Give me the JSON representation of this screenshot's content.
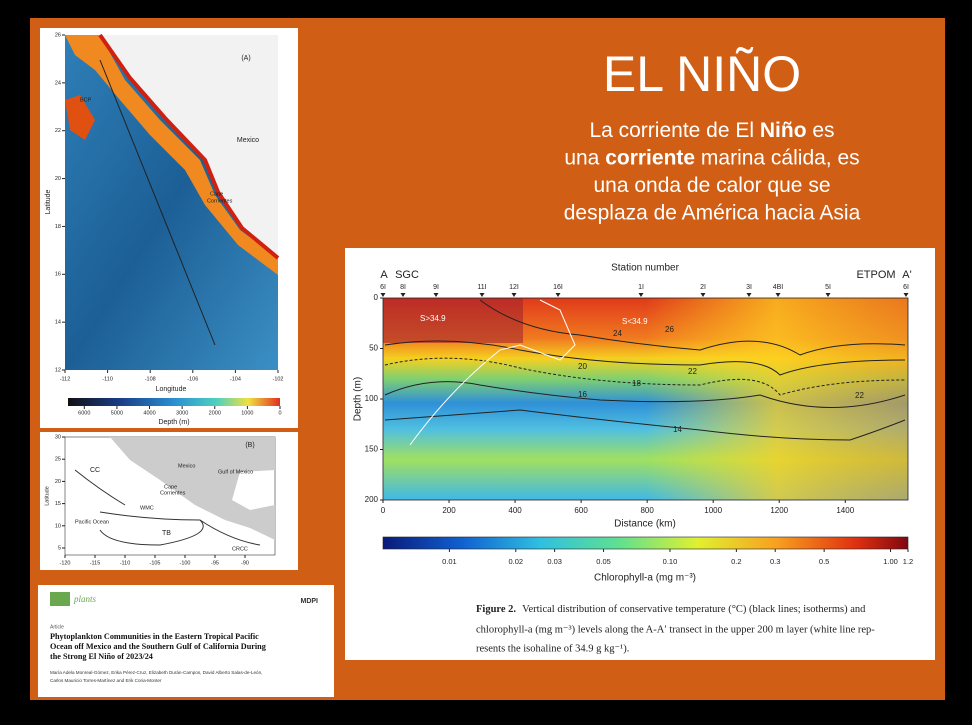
{
  "slide": {
    "title": "EL NIÑO",
    "body_lines": [
      [
        {
          "text": "La corriente de El "
        },
        {
          "text": "Niño",
          "bold": true
        },
        {
          "text": " es"
        }
      ],
      [
        {
          "text": "una "
        },
        {
          "text": "corriente",
          "bold": true
        },
        {
          "text": " marina cálida, es"
        }
      ],
      [
        {
          "text": "una onda de calor que se"
        }
      ],
      [
        {
          "text": "desplaza de América hacia Asia"
        }
      ]
    ]
  },
  "map_a": {
    "panel_label": "(A)",
    "labels": [
      "Mexico",
      "BCP",
      "Cape",
      "Corrientes"
    ],
    "ylabel": "Latitude",
    "xlabel": "Longitude",
    "ylim": [
      12,
      26
    ],
    "yticks": [
      26,
      24,
      22,
      20,
      18,
      16,
      14,
      12
    ],
    "xlim": [
      -112,
      -102
    ],
    "xticks": [
      -112,
      -110,
      -108,
      -106,
      -104,
      -102
    ],
    "depth_label": "Depth (m)",
    "depth_lim": [
      6500,
      0
    ],
    "depth_ticks": [
      6000,
      5000,
      4000,
      3000,
      2000,
      1000,
      0
    ]
  },
  "map_b": {
    "panel_label": "(B)",
    "labels": [
      "Mexico",
      "Gulf of Mexico",
      "CC",
      "Cape",
      "Corrientes",
      "WMC",
      "Pacific Ocean",
      "TB",
      "CRCC"
    ],
    "ylabel": "Latitude",
    "ylim": [
      5,
      30
    ],
    "yticks": [
      30,
      25,
      20,
      15,
      10,
      5
    ],
    "xlim": [
      -120,
      -85
    ],
    "xticks": [
      -120,
      -115,
      -110,
      -105,
      -100,
      -95,
      -90
    ]
  },
  "paper": {
    "journal": "plants",
    "publisher": "MDPI",
    "kind": "Article",
    "title_lines": [
      "Phytoplankton Communities in the Eastern Tropical Pacific",
      "Ocean off Mexico and the Southern Gulf of California During",
      "the Strong El Niño of 2023/24"
    ],
    "author_lines": [
      "María Adela Monreal-Gómez, Erika Pérez-Cruz, Elizabeth Durán-Campos, David Alberto Salas-de-León,",
      "Carlos Mauricio Torres-Martínez and Erik Coria-Monter"
    ]
  },
  "figure": {
    "top_label": "Station number",
    "ends": [
      "A",
      "SGC",
      "ETPOM",
      "A'"
    ],
    "stations": [
      "6I",
      "8I",
      "9I",
      "11I",
      "12I",
      "16I",
      "1I",
      "2I",
      "3I",
      "4BI",
      "5I",
      "6I"
    ],
    "ylabel": "Depth (m)",
    "ylim": [
      0,
      200
    ],
    "yticks": [
      0,
      50,
      100,
      150,
      200
    ],
    "xlabel": "Distance (km)",
    "xlim": [
      0,
      1590
    ],
    "xticks": [
      0,
      200,
      400,
      600,
      800,
      1000,
      1200,
      1400
    ],
    "isotherm_labels": [
      "24",
      "20",
      "18",
      "16",
      "14",
      "26",
      "22",
      "22"
    ],
    "salinity_labels": [
      "S>34.9",
      "S<34.9"
    ],
    "colorbar_label": "Chlorophyll-a (mg m⁻³)",
    "colorbar_lim": [
      0.005,
      1.2
    ],
    "colorbar_ticks": [
      0.01,
      0.02,
      0.03,
      0.05,
      {
        "value": 0.1,
        "label": "0.10"
      },
      0.2,
      0.3,
      0.5,
      {
        "value": 1,
        "label": "1.00"
      },
      1.2
    ],
    "caption_label": "Figure 2.",
    "caption_lines": [
      "Vertical distribution of conservative temperature (°C) (black lines; isotherms) and",
      "chlorophyll-a (mg m⁻³) levels along the A-A′ transect in the upper 200 m layer (white line rep-",
      "resents the isohaline of 34.9 g kg⁻¹)."
    ]
  }
}
